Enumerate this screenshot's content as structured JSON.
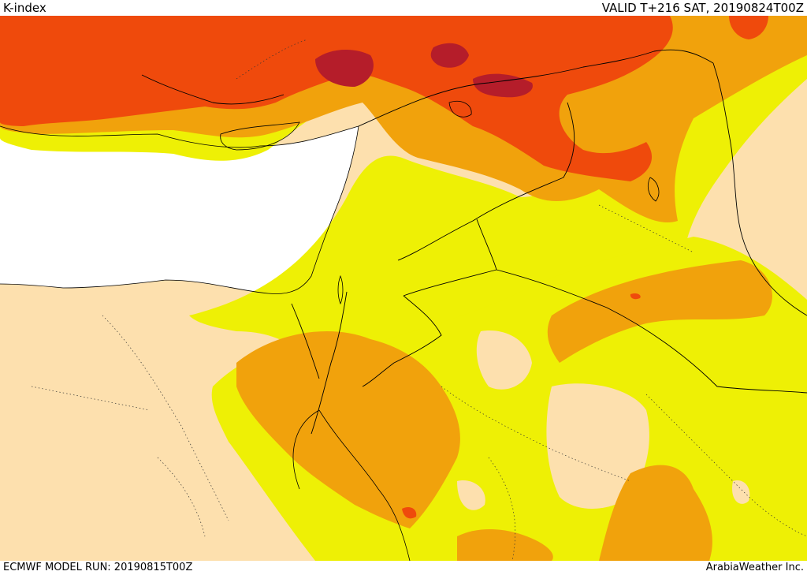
{
  "header": {
    "title": "K-index",
    "valid": "VALID T+216 SAT, 20190824T00Z"
  },
  "footer": {
    "model_run": "ECMWF MODEL RUN: 20190815T00Z",
    "credit": "ArabiaWeather Inc."
  },
  "colors": {
    "water": "#ffffff",
    "land": "#fde0ae",
    "k_level_1": "#eef005",
    "k_level_2": "#f1a20c",
    "k_level_3": "#ef4a0c",
    "k_level_4": "#b51d2a",
    "border": "#000000"
  }
}
